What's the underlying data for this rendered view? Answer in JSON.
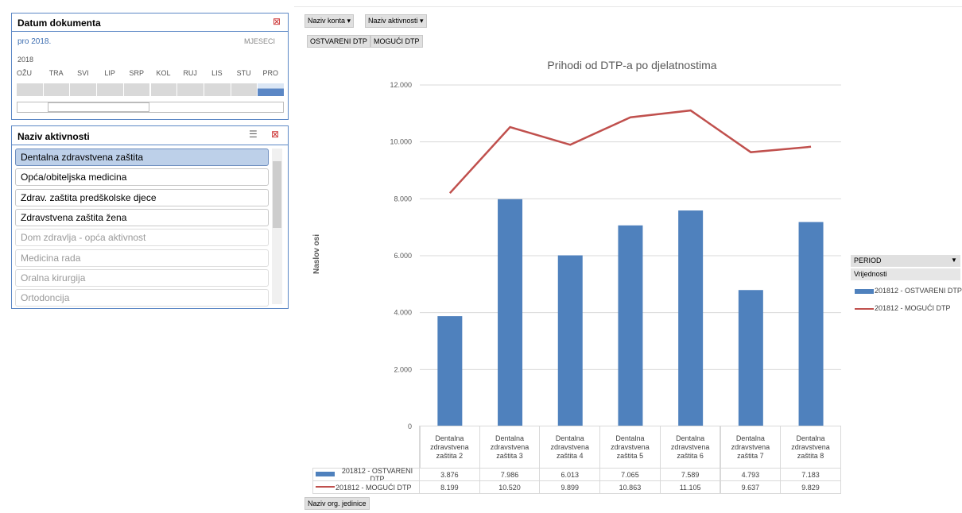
{
  "slicer_date": {
    "title": "Datum dokumenta",
    "selection": "pro 2018.",
    "level": "MJESECI",
    "year": "2018",
    "months": [
      {
        "label": "OŽU",
        "selected": false
      },
      {
        "label": "TRA",
        "selected": false
      },
      {
        "label": "SVI",
        "selected": false
      },
      {
        "label": "LIP",
        "selected": false
      },
      {
        "label": "SRP",
        "selected": false
      },
      {
        "label": "KOL",
        "selected": false
      },
      {
        "label": "RUJ",
        "selected": false
      },
      {
        "label": "LIS",
        "selected": false
      },
      {
        "label": "STU",
        "selected": false
      },
      {
        "label": "PRO",
        "selected": true
      }
    ]
  },
  "slicer_activity": {
    "title": "Naziv aktivnosti",
    "items": [
      {
        "label": "Dentalna zdravstvena zaštita",
        "state": "selected"
      },
      {
        "label": "Opća/obiteljska medicina",
        "state": "available"
      },
      {
        "label": "Zdrav. zaštita predškolske djece",
        "state": "available"
      },
      {
        "label": "Zdravstvena zaštita žena",
        "state": "available"
      },
      {
        "label": "Dom zdravlja - opća aktivnost",
        "state": "dim"
      },
      {
        "label": "Medicina rada",
        "state": "dim"
      },
      {
        "label": "Oralna kirurgija",
        "state": "dim"
      },
      {
        "label": "Ortodoncija",
        "state": "dim"
      }
    ]
  },
  "filter_buttons": [
    "Naziv konta",
    "Naziv aktivnosti"
  ],
  "value_buttons": [
    "OSTVARENI DTP",
    "MOGUĆI DTP"
  ],
  "axis_button": "Naziv org. jedinice",
  "legend_panel": {
    "field": "PERIOD",
    "header": "Vrijednosti"
  },
  "chart_data": {
    "type": "bar",
    "title": "Prihodi od DTP-a po djelatnostima",
    "y_label": "Naslov osi",
    "categories": [
      "Dentalna zdravstvena zaštita 2",
      "Dentalna zdravstvena zaštita 3",
      "Dentalna zdravstvena zaštita 4",
      "Dentalna zdravstvena zaštita 5",
      "Dentalna zdravstvena zaštita 6",
      "Dentalna zdravstvena zaštita 7",
      "Dentalna zdravstvena zaštita 8"
    ],
    "series": [
      {
        "name": "201812 - OSTVARENI DTP",
        "type": "bar",
        "color": "#4f81bd",
        "values": [
          3876,
          7986,
          6013,
          7065,
          7589,
          4793,
          7183
        ],
        "value_labels": [
          "3.876",
          "7.986",
          "6.013",
          "7.065",
          "7.589",
          "4.793",
          "7.183"
        ]
      },
      {
        "name": "201812 - MOGUĆI DTP",
        "type": "line",
        "color": "#c0504d",
        "values": [
          8199,
          10520,
          9899,
          10863,
          11105,
          9637,
          9829
        ],
        "value_labels": [
          "8.199",
          "10.520",
          "9.899",
          "10.863",
          "11.105",
          "9.637",
          "9.829"
        ]
      }
    ],
    "ylim": [
      0,
      12000
    ],
    "yticks": [
      0,
      {
        "value": 2000,
        "label": "2.000"
      },
      {
        "value": 4000,
        "label": "4.000"
      },
      {
        "value": 6000,
        "label": "6.000"
      },
      {
        "value": 8000,
        "label": "8.000"
      },
      {
        "value": 10000,
        "label": "10.000"
      },
      {
        "value": 12000,
        "label": "12.000"
      }
    ],
    "grid": true
  }
}
